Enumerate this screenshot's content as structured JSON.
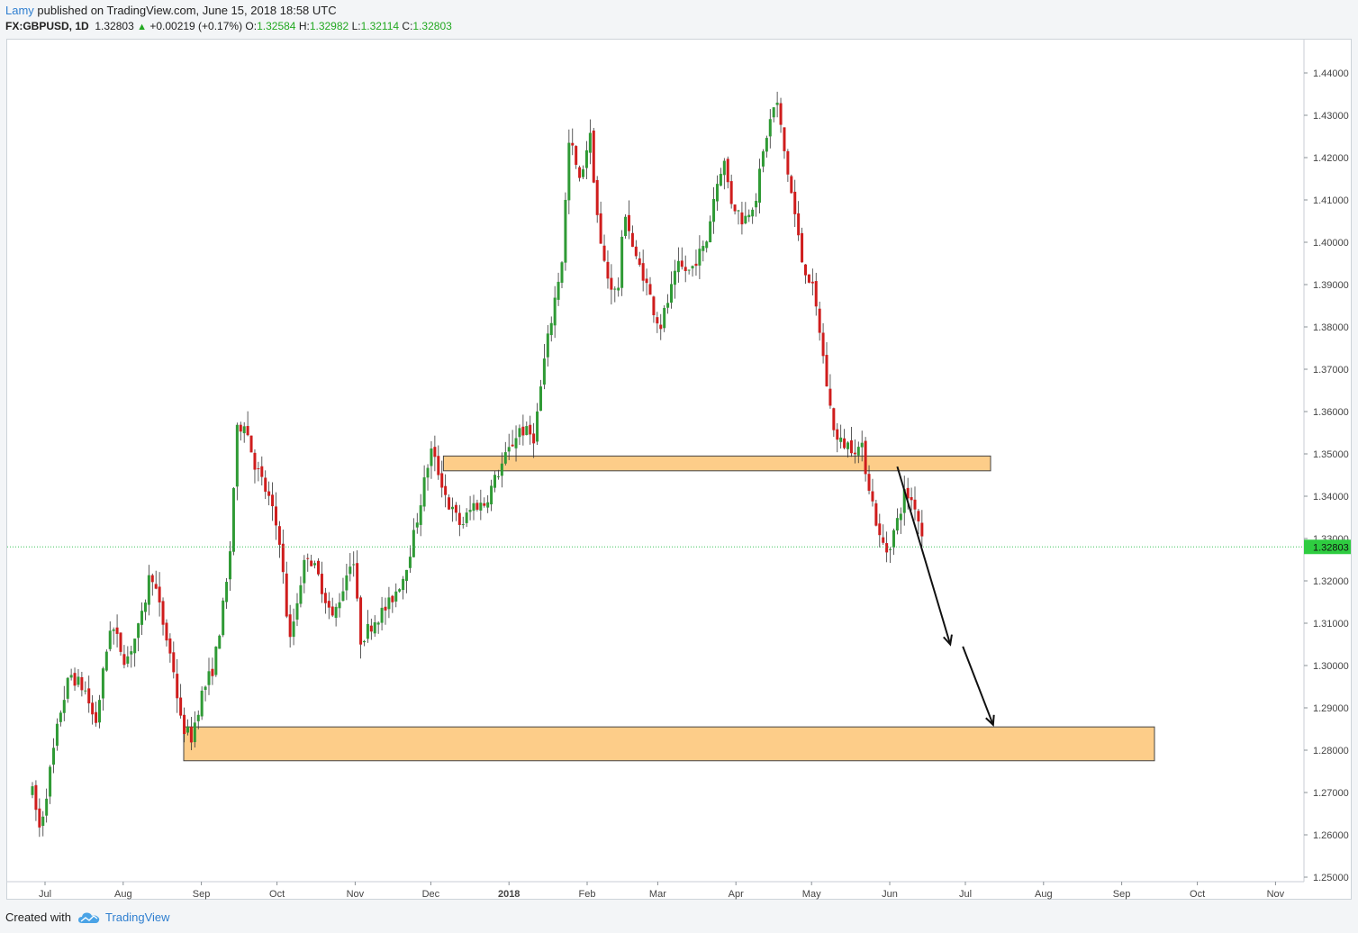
{
  "header": {
    "user": "Lamy",
    "published": "published on TradingView.com, June 15, 2018 18:58 UTC"
  },
  "symbol": {
    "name": "FX:GBPUSD, 1D",
    "last": "1.32803",
    "change": "+0.00219 (+0.17%)",
    "o_label": "O:",
    "o": "1.32584",
    "h_label": "H:",
    "h": "1.32982",
    "l_label": "L:",
    "l": "1.32114",
    "c_label": "C:",
    "c": "1.32803"
  },
  "footer": {
    "created": "Created with",
    "brand": "TradingView"
  },
  "colors": {
    "up": "#2f9a35",
    "down": "#cf1d1d",
    "zone_fill": "#fdc97f",
    "price_line": "#3cc35a",
    "price_badge": "#2ecc40"
  },
  "chart_data": {
    "type": "candlestick",
    "instrument": "GBPUSD",
    "interval": "1D",
    "ylim": [
      1.2475,
      1.4475
    ],
    "y_ticks": [
      "1.25000",
      "1.26000",
      "1.27000",
      "1.28000",
      "1.29000",
      "1.30000",
      "1.31000",
      "1.32000",
      "1.33000",
      "1.34000",
      "1.35000",
      "1.36000",
      "1.37000",
      "1.38000",
      "1.39000",
      "1.40000",
      "1.41000",
      "1.42000",
      "1.43000",
      "1.44000"
    ],
    "x_ticks": [
      "Jul",
      "Aug",
      "Sep",
      "Oct",
      "Nov",
      "Dec",
      "2018",
      "Feb",
      "Mar",
      "Apr",
      "May",
      "Jun",
      "Jul",
      "Aug",
      "Sep",
      "Oct",
      "Nov"
    ],
    "last_price": "1.32803",
    "zones": [
      {
        "from": "2017-12-06",
        "to": "2018-07-11",
        "low": 1.346,
        "high": 1.3495
      },
      {
        "from": "2017-08-25",
        "to": "2018-09-14",
        "low": 1.2775,
        "high": 1.2855
      }
    ],
    "arrows": [
      {
        "from": [
          "2018-06-04",
          1.347
        ],
        "to": [
          "2018-06-25",
          1.305
        ]
      },
      {
        "from": [
          "2018-06-30",
          1.3045
        ],
        "to": [
          "2018-07-12",
          1.286
        ]
      }
    ],
    "swing_path": [
      [
        "2017-06-26",
        1.27
      ],
      [
        "2017-06-29",
        1.261
      ],
      [
        "2017-07-07",
        1.289
      ],
      [
        "2017-07-11",
        1.298
      ],
      [
        "2017-07-17",
        1.294
      ],
      [
        "2017-07-21",
        1.286
      ],
      [
        "2017-07-27",
        1.31
      ],
      [
        "2017-08-02",
        1.301
      ],
      [
        "2017-08-08",
        1.31
      ],
      [
        "2017-08-12",
        1.323
      ],
      [
        "2017-08-16",
        1.312
      ],
      [
        "2017-08-21",
        1.299
      ],
      [
        "2017-08-24",
        1.286
      ],
      [
        "2017-08-28",
        1.283
      ],
      [
        "2017-09-01",
        1.293
      ],
      [
        "2017-09-06",
        1.3
      ],
      [
        "2017-09-12",
        1.323
      ],
      [
        "2017-09-15",
        1.355
      ],
      [
        "2017-09-18",
        1.358
      ],
      [
        "2017-09-22",
        1.348
      ],
      [
        "2017-09-28",
        1.339
      ],
      [
        "2017-10-02",
        1.33
      ],
      [
        "2017-10-06",
        1.305
      ],
      [
        "2017-10-10",
        1.319
      ],
      [
        "2017-10-13",
        1.327
      ],
      [
        "2017-10-18",
        1.32
      ],
      [
        "2017-10-23",
        1.311
      ],
      [
        "2017-10-27",
        1.318
      ],
      [
        "2017-10-31",
        1.327
      ],
      [
        "2017-11-03",
        1.306
      ],
      [
        "2017-11-09",
        1.311
      ],
      [
        "2017-11-14",
        1.314
      ],
      [
        "2017-11-20",
        1.321
      ],
      [
        "2017-11-24",
        1.33
      ],
      [
        "2017-11-29",
        1.345
      ],
      [
        "2017-12-01",
        1.351
      ],
      [
        "2017-12-05",
        1.344
      ],
      [
        "2017-12-08",
        1.338
      ],
      [
        "2017-12-13",
        1.333
      ],
      [
        "2017-12-18",
        1.338
      ],
      [
        "2017-12-22",
        1.338
      ],
      [
        "2017-12-28",
        1.346
      ],
      [
        "2018-01-02",
        1.352
      ],
      [
        "2018-01-05",
        1.356
      ],
      [
        "2018-01-11",
        1.354
      ],
      [
        "2018-01-15",
        1.372
      ],
      [
        "2018-01-19",
        1.386
      ],
      [
        "2018-01-22",
        1.396
      ],
      [
        "2018-01-25",
        1.425
      ],
      [
        "2018-01-29",
        1.414
      ],
      [
        "2018-02-02",
        1.426
      ],
      [
        "2018-02-06",
        1.4
      ],
      [
        "2018-02-09",
        1.392
      ],
      [
        "2018-02-13",
        1.387
      ],
      [
        "2018-02-16",
        1.408
      ],
      [
        "2018-02-20",
        1.396
      ],
      [
        "2018-02-23",
        1.393
      ],
      [
        "2018-02-28",
        1.383
      ],
      [
        "2018-03-02",
        1.38
      ],
      [
        "2018-03-06",
        1.388
      ],
      [
        "2018-03-09",
        1.394
      ],
      [
        "2018-03-14",
        1.393
      ],
      [
        "2018-03-16",
        1.396
      ],
      [
        "2018-03-20",
        1.399
      ],
      [
        "2018-03-23",
        1.41
      ],
      [
        "2018-03-27",
        1.42
      ],
      [
        "2018-03-30",
        1.41
      ],
      [
        "2018-04-04",
        1.405
      ],
      [
        "2018-04-09",
        1.411
      ],
      [
        "2018-04-13",
        1.425
      ],
      [
        "2018-04-17",
        1.434
      ],
      [
        "2018-04-20",
        1.422
      ],
      [
        "2018-04-24",
        1.408
      ],
      [
        "2018-04-27",
        1.396
      ],
      [
        "2018-05-01",
        1.39
      ],
      [
        "2018-05-04",
        1.38
      ],
      [
        "2018-05-08",
        1.362
      ],
      [
        "2018-05-11",
        1.353
      ],
      [
        "2018-05-16",
        1.352
      ],
      [
        "2018-05-21",
        1.351
      ],
      [
        "2018-05-24",
        1.342
      ],
      [
        "2018-05-28",
        1.33
      ],
      [
        "2018-05-31",
        1.327
      ],
      [
        "2018-06-04",
        1.334
      ],
      [
        "2018-06-07",
        1.341
      ],
      [
        "2018-06-11",
        1.338
      ],
      [
        "2018-06-15",
        1.328
      ]
    ]
  }
}
